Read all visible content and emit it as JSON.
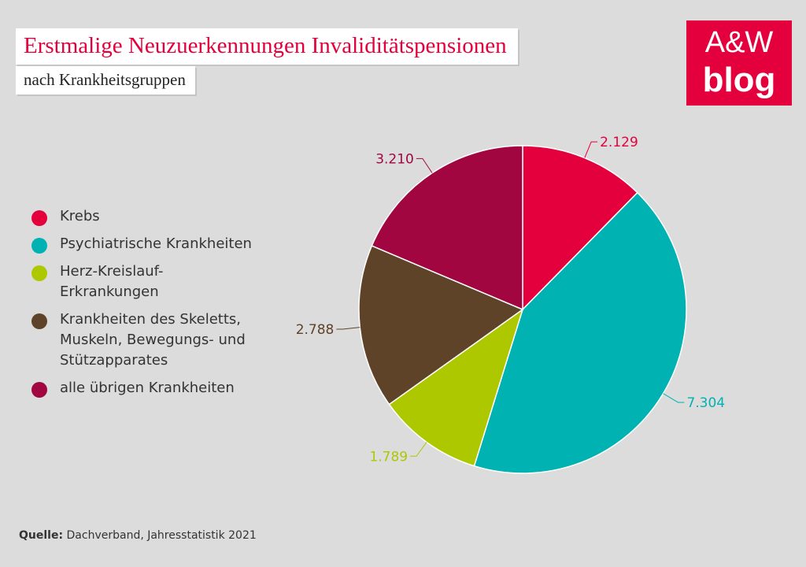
{
  "header": {
    "title": "Erstmalige Neuzuerkennungen Invaliditätspensionen",
    "subtitle": "nach Krankheitsgruppen"
  },
  "logo": {
    "line1": "A&W",
    "line2": "blog",
    "color": "#e4003c"
  },
  "legend": {
    "items": [
      {
        "label": "Krebs",
        "color": "#e4003c"
      },
      {
        "label": "Psychiatrische Krankheiten",
        "color": "#00b2b2"
      },
      {
        "label": "Herz-Kreislauf-\nErkrankungen",
        "color": "#aec800"
      },
      {
        "label": "Krankheiten des Skeletts,\nMuskeln, Bewegungs- und\nStützapparates",
        "color": "#5e4328"
      },
      {
        "label": "alle übrigen Krankheiten",
        "color": "#a10640"
      }
    ]
  },
  "source": {
    "prefix": "Quelle:",
    "text": "Dachverband, Jahresstatistik 2021"
  },
  "chart_data": {
    "type": "pie",
    "title": "Erstmalige Neuzuerkennungen Invaliditätspensionen",
    "subtitle": "nach Krankheitsgruppen",
    "categories": [
      "Krebs",
      "Psychiatrische Krankheiten",
      "Herz-Kreislauf-Erkrankungen",
      "Krankheiten des Skeletts, Muskeln, Bewegungs- und Stützapparates",
      "alle übrigen Krankheiten"
    ],
    "values": [
      2129,
      7304,
      1789,
      2788,
      3210
    ],
    "value_labels": [
      "2.129",
      "7.304",
      "1.789",
      "2.788",
      "3.210"
    ],
    "colors": [
      "#e4003c",
      "#00b2b2",
      "#aec800",
      "#5e4328",
      "#a10640"
    ],
    "start": "top",
    "direction": "clockwise",
    "legend_position": "left"
  }
}
